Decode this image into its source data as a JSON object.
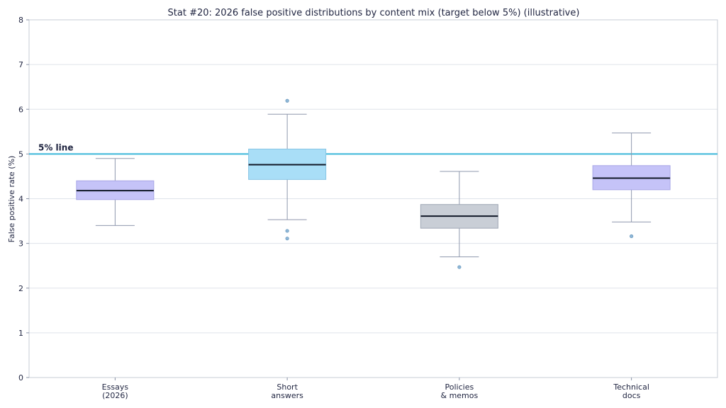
{
  "chart_data": {
    "type": "box",
    "title": "Stat #20: 2026 false positive distributions by content mix (target below 5%) (illustrative)",
    "ylabel": "False positive rate (%)",
    "xlabel": "",
    "ylim": [
      0,
      8
    ],
    "yticks": [
      0,
      1,
      2,
      3,
      4,
      5,
      6,
      7,
      8
    ],
    "grid": "horizontal",
    "reference_line": {
      "value": 5,
      "label": "5% line",
      "color": "#3bb6d9"
    },
    "categories": [
      {
        "label_lines": [
          "Essays",
          "(2026)"
        ],
        "whisker_low": 3.4,
        "q1": 3.98,
        "median": 4.18,
        "q3": 4.4,
        "whisker_high": 4.9,
        "outliers": [],
        "fill": "#c5c3f8",
        "stroke": "#a8a6e6"
      },
      {
        "label_lines": [
          "Short",
          "answers"
        ],
        "whisker_low": 3.53,
        "q1": 4.43,
        "median": 4.76,
        "q3": 5.11,
        "whisker_high": 5.89,
        "outliers": [
          6.19,
          3.28,
          3.11
        ],
        "fill": "#a9def7",
        "stroke": "#86c4e4"
      },
      {
        "label_lines": [
          "Policies",
          "& memos"
        ],
        "whisker_low": 2.7,
        "q1": 3.34,
        "median": 3.61,
        "q3": 3.87,
        "whisker_high": 4.61,
        "outliers": [
          2.47
        ],
        "fill": "#c9ced6",
        "stroke": "#9fa7b5"
      },
      {
        "label_lines": [
          "Technical",
          "docs"
        ],
        "whisker_low": 3.48,
        "q1": 4.2,
        "median": 4.46,
        "q3": 4.74,
        "whisker_high": 5.47,
        "outliers": [
          3.16
        ],
        "fill": "#c5c3f8",
        "stroke": "#a8a6e6"
      }
    ]
  }
}
